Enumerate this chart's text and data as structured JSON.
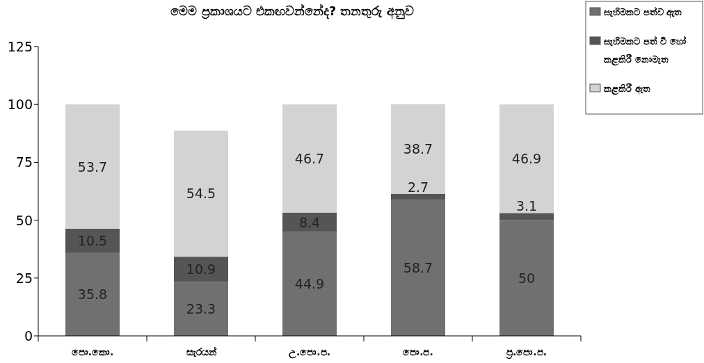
{
  "chart_data": {
    "type": "bar",
    "title": "මෙම ප්‍රකාශයට එකඟවන්නේද? තනතුරු අනුව",
    "categories": [
      "පො.කො.",
      "සැරයන්",
      "උ.පො.ප.",
      "පො.ප.",
      "ප්‍ර.පො.ප."
    ],
    "series": [
      {
        "name": "සැහිමකට පත්ව ඇත",
        "color": "#707070",
        "values": [
          35.8,
          23.3,
          44.9,
          58.7,
          50
        ]
      },
      {
        "name": "සැහිමකට පත් වී හෝ කළකිරී නොමැත",
        "color": "#555555",
        "values": [
          10.5,
          10.9,
          8.4,
          2.7,
          3.1
        ]
      },
      {
        "name": "කළකිරී ඇත",
        "color": "#d3d3d3",
        "values": [
          53.7,
          54.5,
          46.7,
          38.7,
          46.9
        ]
      }
    ],
    "stacked": true,
    "ylim": [
      0,
      125
    ],
    "yticks": [
      0,
      25,
      50,
      75,
      100,
      125
    ],
    "data_labels": true,
    "legend": "top right"
  }
}
